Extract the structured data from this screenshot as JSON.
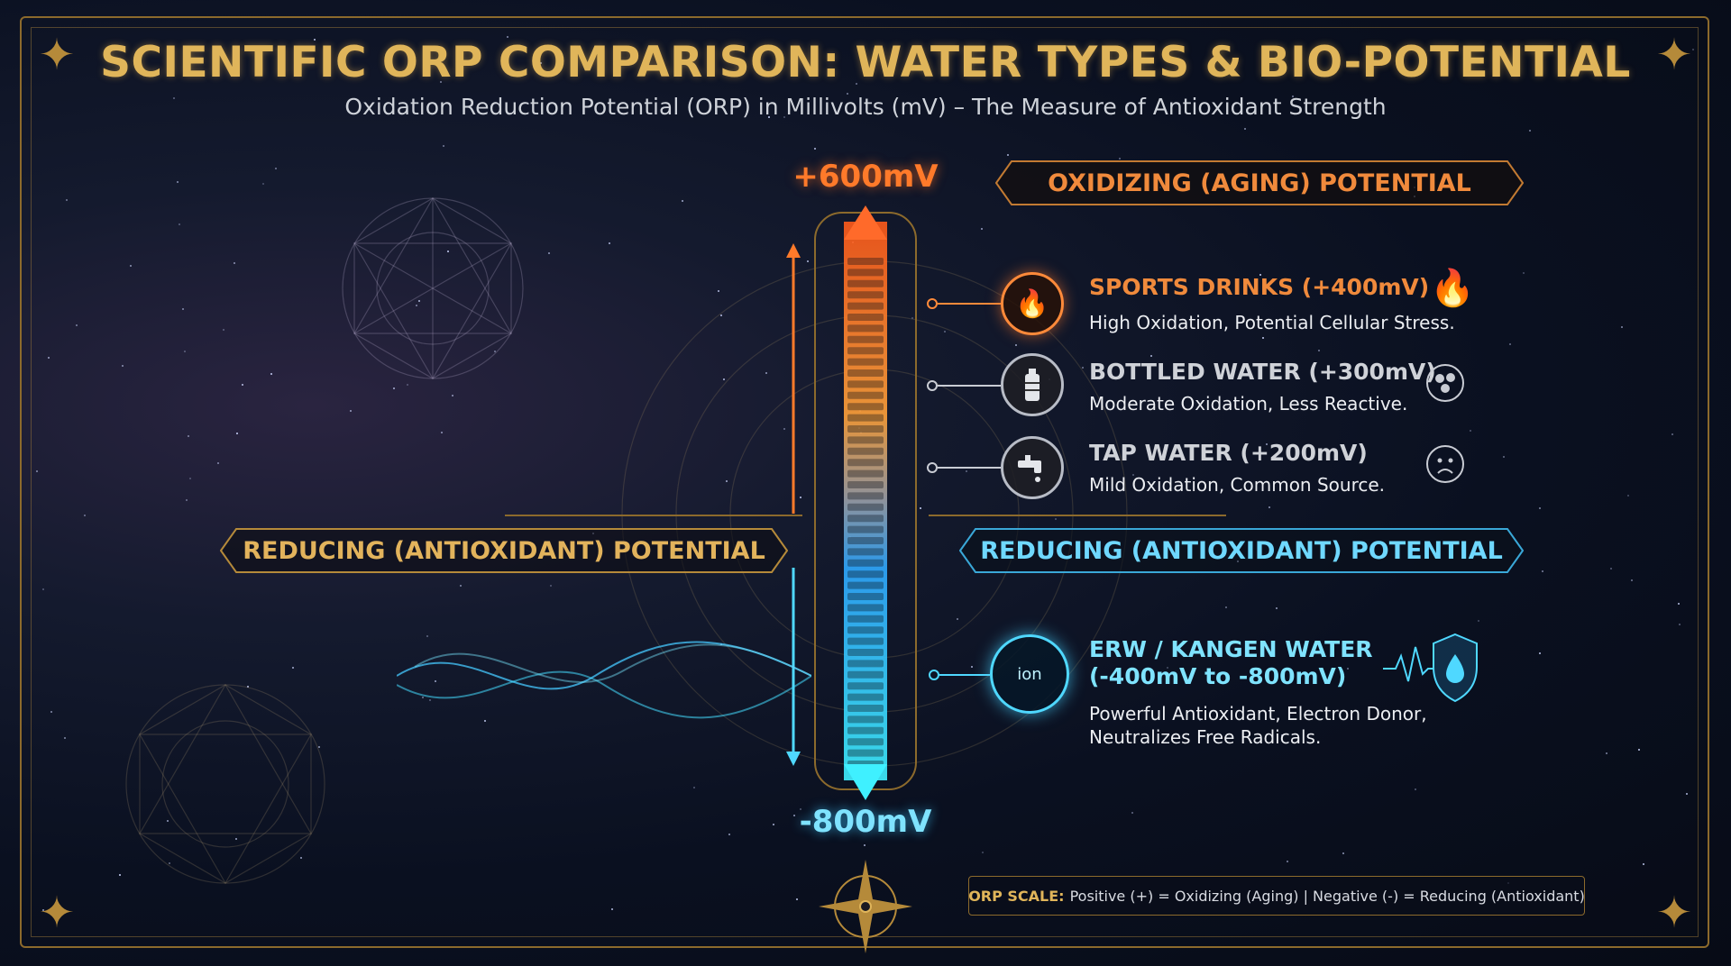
{
  "title": "SCIENTIFIC ORP COMPARISON: WATER TYPES & BIO-POTENTIAL",
  "subtitle": "Oxidation Reduction Potential (ORP) in Millivolts (mV) – The Measure of Antioxidant Strength",
  "scale": {
    "top": "+600mV",
    "bottom": "-800mV"
  },
  "banners": {
    "oxidizing": "OXIDIZING (AGING) POTENTIAL",
    "reducing_left": "REDUCING (ANTIOXIDANT) POTENTIAL",
    "reducing_right": "REDUCING (ANTIOXIDANT) POTENTIAL"
  },
  "items": [
    {
      "title": "SPORTS DRINKS (+400mV)",
      "desc": "High Oxidation, Potential Cellular Stress.",
      "icon": "fire-icon",
      "badge": "flame-icon",
      "color": "#f08a3c"
    },
    {
      "title": "BOTTLED WATER (+300mV)",
      "desc": "Moderate Oxidation, Less Reactive.",
      "icon": "bottle-icon",
      "badge": "molecule-icon",
      "color": "#c9ccd4"
    },
    {
      "title": "TAP WATER (+200mV)",
      "desc": "Mild Oxidation, Common Source.",
      "icon": "faucet-icon",
      "badge": "sad-face-icon",
      "color": "#c9ccd4"
    },
    {
      "title_line1": "ERW / KANGEN WATER",
      "title_line2": "(-400mV to -800mV)",
      "desc_line1": "Powerful Antioxidant, Electron Donor,",
      "desc_line2": "Neutralizes Free Radicals.",
      "icon_label": "ion",
      "icon": "ion-icon",
      "badge": "shield-drop-icon",
      "color": "#6fd8ff"
    }
  ],
  "footer": {
    "key": "ORP SCALE:",
    "text": "Positive (+) = Oxidizing (Aging) | Negative (-) = Reducing (Antioxidant)"
  },
  "colors": {
    "gold": "#e0b55a",
    "orange": "#ff7a2a",
    "cyan": "#6fd8ff"
  }
}
